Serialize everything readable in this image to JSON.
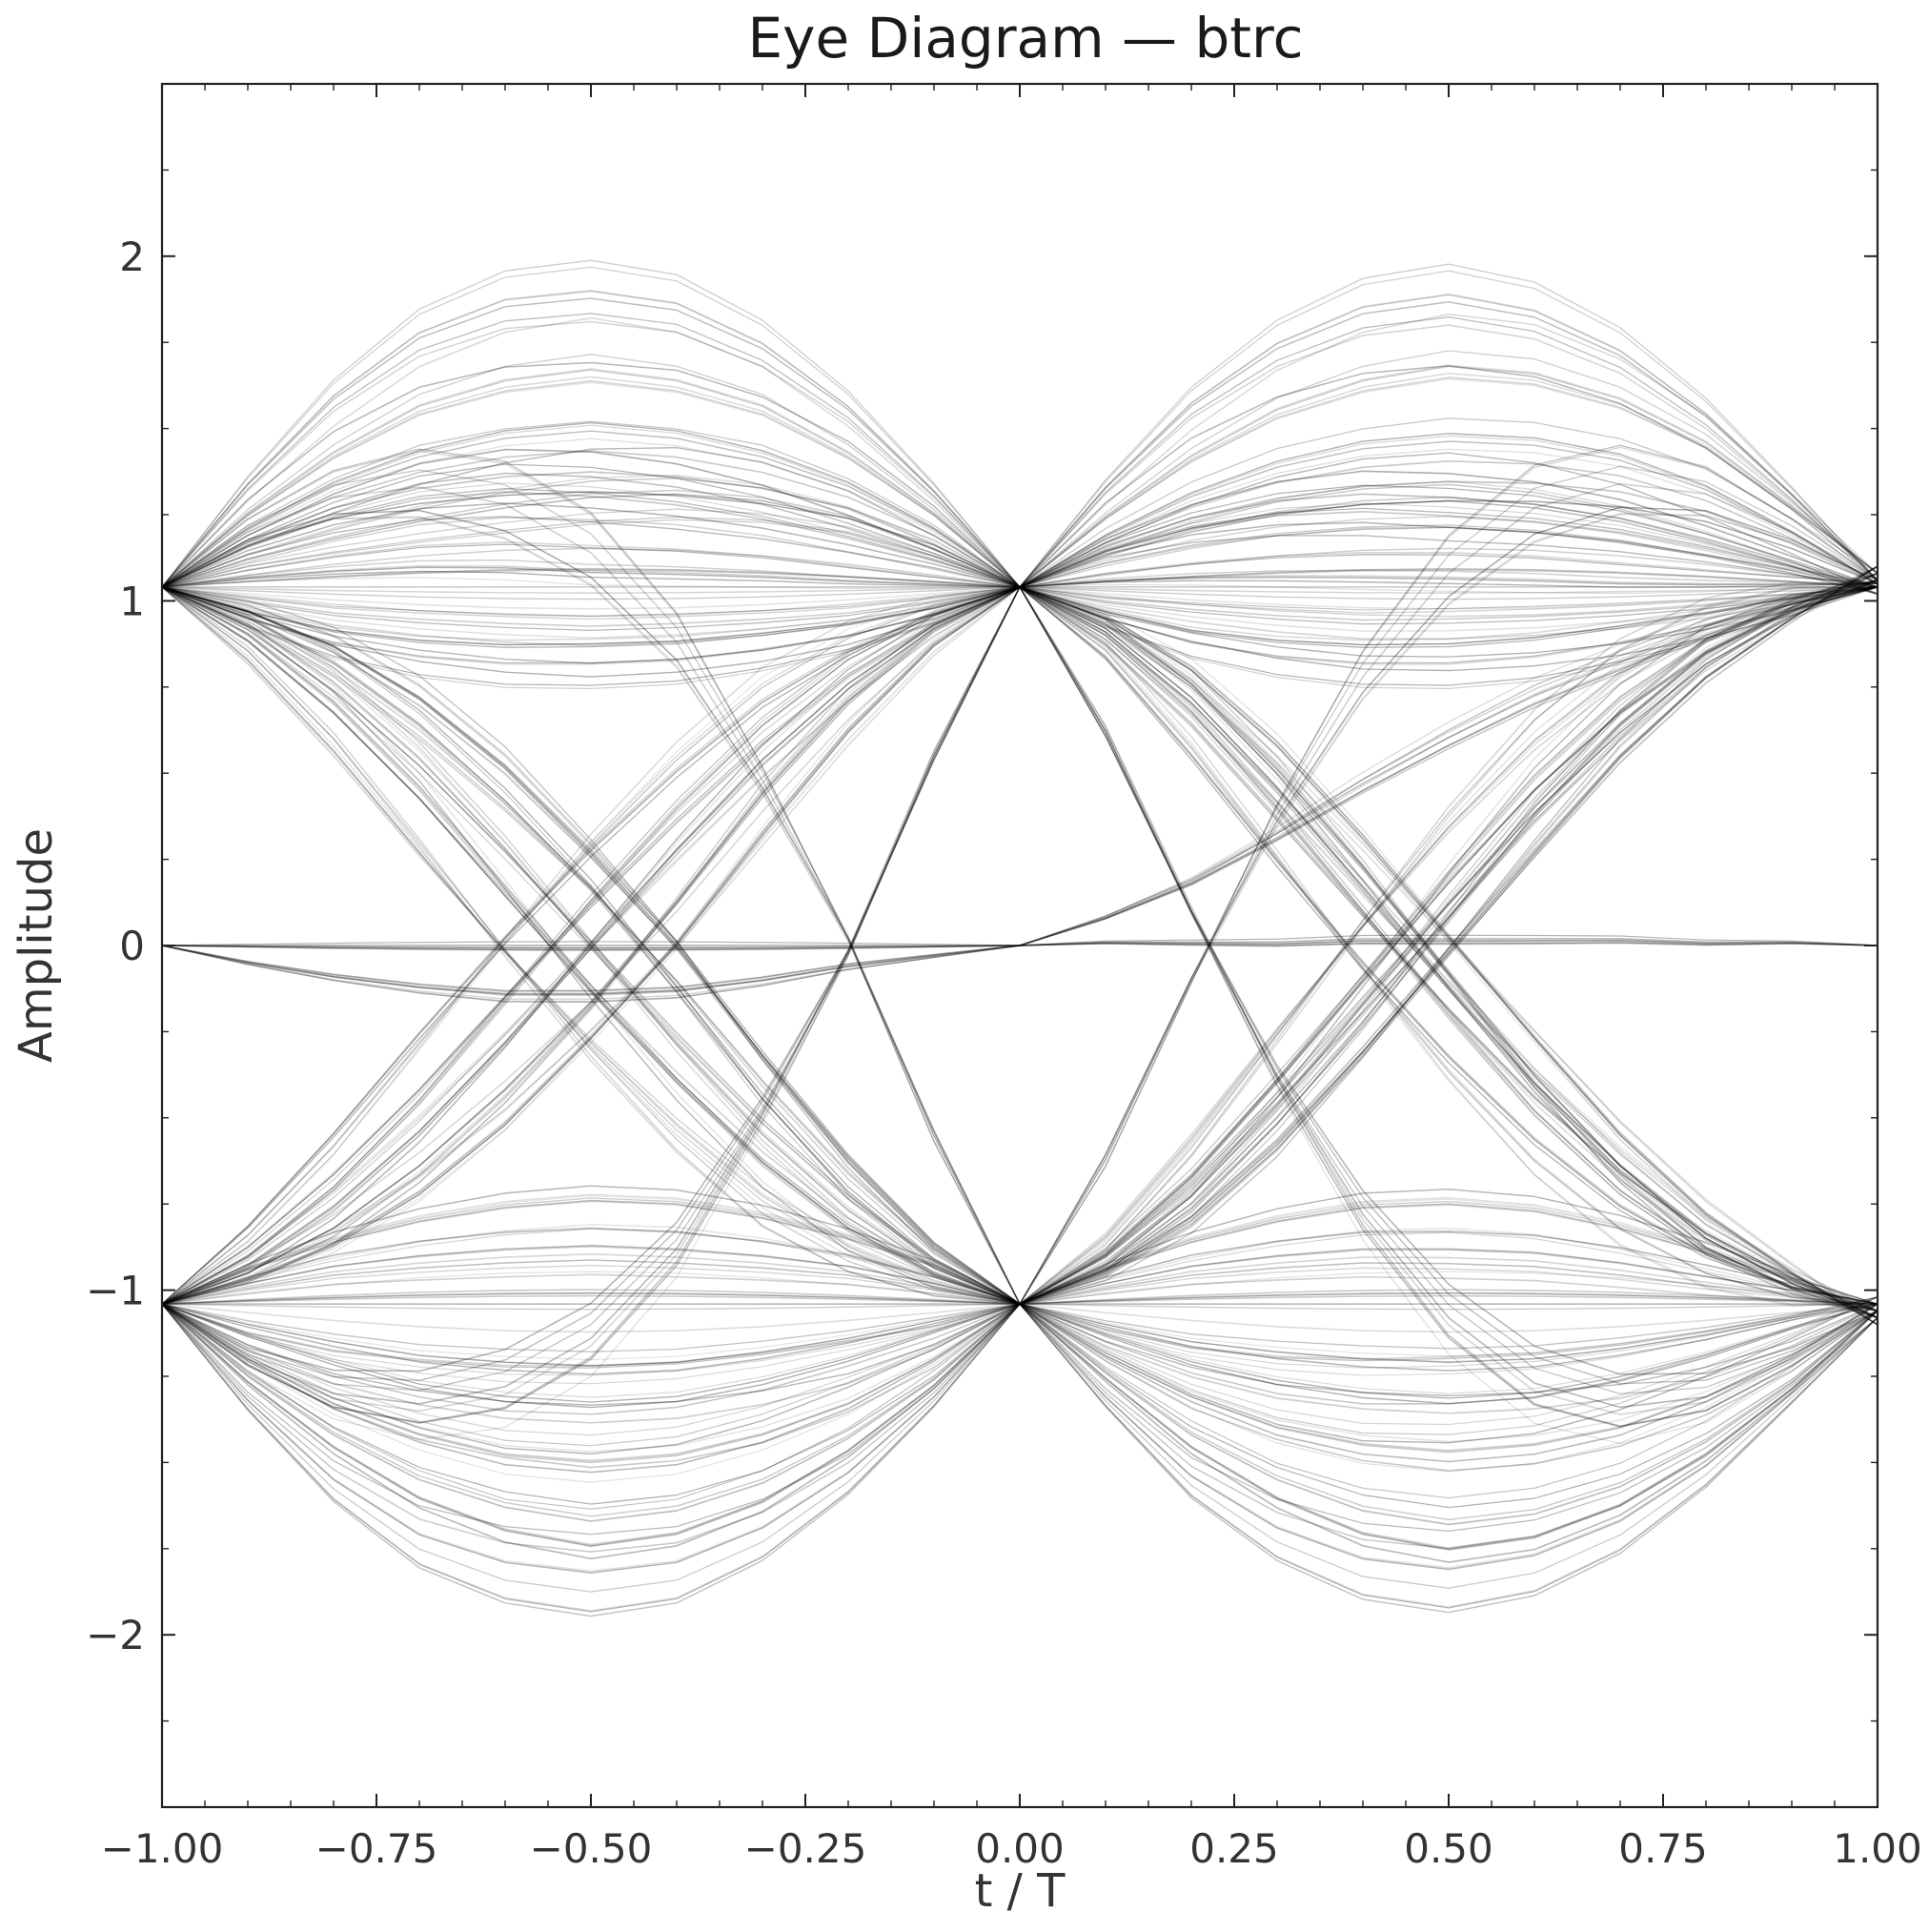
{
  "chart_data": {
    "type": "line",
    "title": "Eye Diagram — btrc",
    "xlabel": "t / T",
    "ylabel": "Amplitude",
    "xlim": [
      -1.0,
      1.0
    ],
    "ylim": [
      -2.5,
      2.5
    ],
    "grid": false,
    "legend": "none",
    "line_color": "#000000",
    "x_ticks": [
      -1.0,
      -0.75,
      -0.5,
      -0.25,
      0.0,
      0.25,
      0.5,
      0.75,
      1.0
    ],
    "x_tick_labels": [
      "−1.00",
      "−0.75",
      "−0.50",
      "−0.25",
      "0.00",
      "0.25",
      "0.50",
      "0.75",
      "1.00"
    ],
    "y_ticks": [
      -2,
      -1,
      0,
      1,
      2
    ],
    "y_tick_labels": [
      "−2",
      "−1",
      "0",
      "1",
      "2"
    ],
    "x_minor_ticks": [
      -0.95,
      -0.9,
      -0.85,
      -0.8,
      -0.7,
      -0.65,
      -0.6,
      -0.55,
      -0.45,
      -0.4,
      -0.35,
      -0.3,
      -0.2,
      -0.15,
      -0.1,
      -0.05,
      0.05,
      0.1,
      0.15,
      0.2,
      0.3,
      0.35,
      0.4,
      0.45,
      0.55,
      0.6,
      0.65,
      0.7,
      0.8,
      0.85,
      0.9,
      0.95
    ],
    "y_minor_ticks": [
      -2.25,
      -1.75,
      -1.5,
      -1.25,
      -0.75,
      -0.5,
      -0.25,
      0.25,
      0.5,
      0.75,
      1.25,
      1.5,
      1.75,
      2.25
    ],
    "sample_levels": [
      -1.04,
      1.04
    ],
    "x": [
      -1.0,
      -0.9,
      -0.8,
      -0.7,
      -0.6,
      -0.5,
      -0.4,
      -0.3,
      -0.2,
      -0.1,
      0.0,
      0.1,
      0.2,
      0.3,
      0.4,
      0.5,
      0.6,
      0.7,
      0.8,
      0.9,
      1.0
    ],
    "series": [
      {
        "values": [
          1.04,
          1.32,
          1.55,
          1.71,
          1.79,
          1.81,
          1.78,
          1.68,
          1.52,
          1.3,
          1.04,
          1.31,
          1.53,
          1.68,
          1.77,
          1.8,
          1.76,
          1.66,
          1.5,
          1.29,
          1.06
        ]
      },
      {
        "values": [
          1.04,
          1.25,
          1.42,
          1.55,
          1.62,
          1.65,
          1.62,
          1.55,
          1.42,
          1.25,
          1.04,
          1.24,
          1.41,
          1.54,
          1.62,
          1.66,
          1.64,
          1.57,
          1.45,
          1.27,
          1.08
        ]
      },
      {
        "values": [
          1.04,
          1.2,
          1.32,
          1.4,
          1.45,
          1.47,
          1.45,
          1.4,
          1.32,
          1.2,
          1.04,
          1.18,
          1.29,
          1.37,
          1.42,
          1.44,
          1.43,
          1.39,
          1.31,
          1.19,
          1.05
        ]
      },
      {
        "values": [
          1.04,
          1.17,
          1.27,
          1.34,
          1.37,
          1.36,
          1.33,
          1.28,
          1.21,
          1.13,
          1.04,
          1.16,
          1.24,
          1.29,
          1.31,
          1.3,
          1.28,
          1.24,
          1.18,
          1.11,
          1.04
        ]
      },
      {
        "values": [
          1.04,
          1.12,
          1.18,
          1.23,
          1.27,
          1.3,
          1.31,
          1.29,
          1.24,
          1.15,
          1.04,
          1.13,
          1.2,
          1.25,
          1.28,
          1.29,
          1.27,
          1.23,
          1.17,
          1.1,
          1.02
        ]
      },
      {
        "values": [
          1.04,
          1.09,
          1.13,
          1.16,
          1.17,
          1.16,
          1.15,
          1.13,
          1.1,
          1.07,
          1.04,
          1.08,
          1.11,
          1.13,
          1.14,
          1.14,
          1.13,
          1.11,
          1.09,
          1.07,
          1.05
        ]
      },
      {
        "values": [
          1.04,
          1.04,
          1.04,
          1.04,
          1.04,
          1.04,
          1.04,
          1.04,
          1.04,
          1.04,
          1.04,
          1.04,
          1.04,
          1.04,
          1.04,
          1.04,
          1.04,
          1.04,
          1.04,
          1.04,
          1.04
        ]
      },
      {
        "values": [
          1.04,
          0.98,
          0.93,
          0.9,
          0.88,
          0.87,
          0.88,
          0.9,
          0.93,
          0.98,
          1.04,
          0.98,
          0.94,
          0.91,
          0.89,
          0.89,
          0.9,
          0.92,
          0.95,
          0.99,
          1.04
        ]
      },
      {
        "values": [
          1.04,
          0.95,
          0.88,
          0.84,
          0.82,
          0.82,
          0.83,
          0.86,
          0.9,
          0.96,
          1.04,
          0.95,
          0.88,
          0.84,
          0.82,
          0.82,
          0.84,
          0.88,
          0.93,
          0.99,
          1.06
        ]
      },
      {
        "values": [
          -1.04,
          -1.32,
          -1.55,
          -1.71,
          -1.79,
          -1.82,
          -1.79,
          -1.69,
          -1.53,
          -1.31,
          -1.04,
          -1.31,
          -1.54,
          -1.69,
          -1.78,
          -1.81,
          -1.77,
          -1.67,
          -1.51,
          -1.3,
          -1.08
        ]
      },
      {
        "values": [
          -1.04,
          -1.25,
          -1.42,
          -1.55,
          -1.63,
          -1.67,
          -1.64,
          -1.56,
          -1.43,
          -1.26,
          -1.04,
          -1.24,
          -1.42,
          -1.55,
          -1.64,
          -1.68,
          -1.65,
          -1.57,
          -1.44,
          -1.27,
          -1.06
        ]
      },
      {
        "values": [
          -1.04,
          -1.2,
          -1.33,
          -1.42,
          -1.48,
          -1.5,
          -1.48,
          -1.42,
          -1.33,
          -1.2,
          -1.04,
          -1.19,
          -1.31,
          -1.4,
          -1.45,
          -1.47,
          -1.45,
          -1.4,
          -1.31,
          -1.19,
          -1.04
        ]
      },
      {
        "values": [
          -1.04,
          -1.16,
          -1.25,
          -1.31,
          -1.35,
          -1.36,
          -1.34,
          -1.29,
          -1.22,
          -1.14,
          -1.04,
          -1.15,
          -1.24,
          -1.3,
          -1.33,
          -1.33,
          -1.31,
          -1.26,
          -1.19,
          -1.11,
          -1.02
        ]
      },
      {
        "values": [
          -1.04,
          -1.1,
          -1.15,
          -1.19,
          -1.21,
          -1.22,
          -1.21,
          -1.18,
          -1.14,
          -1.09,
          -1.04,
          -1.1,
          -1.15,
          -1.18,
          -1.2,
          -1.21,
          -1.2,
          -1.17,
          -1.13,
          -1.08,
          -1.04
        ]
      },
      {
        "values": [
          -1.04,
          -1.04,
          -1.04,
          -1.04,
          -1.04,
          -1.04,
          -1.04,
          -1.04,
          -1.04,
          -1.04,
          -1.04,
          -1.04,
          -1.04,
          -1.04,
          -1.04,
          -1.04,
          -1.04,
          -1.04,
          -1.04,
          -1.04,
          -1.04
        ]
      },
      {
        "values": [
          -1.04,
          -0.98,
          -0.93,
          -0.9,
          -0.88,
          -0.87,
          -0.88,
          -0.9,
          -0.93,
          -0.98,
          -1.04,
          -0.98,
          -0.93,
          -0.9,
          -0.88,
          -0.88,
          -0.89,
          -0.92,
          -0.96,
          -1.0,
          -1.06
        ]
      },
      {
        "values": [
          -1.04,
          -0.94,
          -0.86,
          -0.8,
          -0.76,
          -0.74,
          -0.75,
          -0.79,
          -0.85,
          -0.93,
          -1.04,
          -0.94,
          -0.86,
          -0.8,
          -0.76,
          -0.75,
          -0.77,
          -0.82,
          -0.89,
          -0.97,
          -1.08
        ]
      },
      {
        "values": [
          1.04,
          0.95,
          0.82,
          0.64,
          0.42,
          0.17,
          -0.12,
          -0.43,
          -0.7,
          -0.91,
          -1.04,
          -0.93,
          -0.75,
          -0.5,
          -0.22,
          0.08,
          0.38,
          0.64,
          0.85,
          0.98,
          1.08
        ]
      },
      {
        "values": [
          1.04,
          0.93,
          0.76,
          0.54,
          0.28,
          0.0,
          -0.28,
          -0.54,
          -0.76,
          -0.93,
          -1.04,
          -0.92,
          -0.72,
          -0.46,
          -0.17,
          0.12,
          0.4,
          0.64,
          0.84,
          0.97,
          1.06
        ]
      },
      {
        "values": [
          1.04,
          0.9,
          0.7,
          0.45,
          0.16,
          -0.13,
          -0.4,
          -0.64,
          -0.83,
          -0.96,
          -1.04,
          -0.9,
          -0.68,
          -0.4,
          -0.1,
          0.2,
          0.48,
          0.71,
          0.88,
          0.99,
          1.04
        ]
      },
      {
        "values": [
          1.04,
          0.97,
          0.87,
          0.72,
          0.52,
          0.27,
          0.0,
          -0.32,
          -0.62,
          -0.87,
          -1.04,
          -0.95,
          -0.8,
          -0.58,
          -0.31,
          -0.02,
          0.27,
          0.55,
          0.78,
          0.95,
          1.1
        ]
      },
      {
        "values": [
          1.04,
          0.84,
          0.58,
          0.28,
          -0.02,
          -0.3,
          -0.55,
          -0.76,
          -0.9,
          -0.99,
          -1.04,
          -0.86,
          -0.58,
          -0.26,
          0.06,
          0.36,
          0.62,
          0.82,
          0.95,
          1.02,
          1.04
        ]
      },
      {
        "values": [
          -1.04,
          -0.95,
          -0.82,
          -0.64,
          -0.42,
          -0.17,
          0.12,
          0.43,
          0.7,
          0.91,
          1.04,
          0.93,
          0.75,
          0.5,
          0.22,
          -0.08,
          -0.38,
          -0.64,
          -0.85,
          -0.98,
          -1.08
        ]
      },
      {
        "values": [
          -1.04,
          -0.93,
          -0.76,
          -0.54,
          -0.28,
          0.0,
          0.28,
          0.54,
          0.76,
          0.93,
          1.04,
          0.92,
          0.72,
          0.46,
          0.17,
          -0.12,
          -0.4,
          -0.64,
          -0.84,
          -0.97,
          -1.06
        ]
      },
      {
        "values": [
          -1.04,
          -0.9,
          -0.7,
          -0.45,
          -0.16,
          0.13,
          0.4,
          0.64,
          0.83,
          0.96,
          1.04,
          0.9,
          0.68,
          0.4,
          0.1,
          -0.2,
          -0.48,
          -0.71,
          -0.88,
          -0.99,
          -1.04
        ]
      },
      {
        "values": [
          -1.04,
          -0.97,
          -0.87,
          -0.72,
          -0.52,
          -0.27,
          0.0,
          0.32,
          0.62,
          0.87,
          1.04,
          0.95,
          0.8,
          0.58,
          0.31,
          0.02,
          -0.27,
          -0.55,
          -0.78,
          -0.95,
          -1.1
        ]
      },
      {
        "values": [
          -1.04,
          -0.84,
          -0.58,
          -0.28,
          0.02,
          0.3,
          0.55,
          0.76,
          0.9,
          0.99,
          1.04,
          0.86,
          0.58,
          0.26,
          -0.06,
          -0.36,
          -0.62,
          -0.82,
          -0.95,
          -1.02,
          -1.04
        ]
      },
      {
        "values": [
          1.04,
          1.2,
          1.3,
          1.33,
          1.28,
          1.14,
          0.88,
          0.48,
          0.02,
          -0.55,
          -1.04,
          -0.62,
          -0.1,
          0.38,
          0.78,
          1.08,
          1.27,
          1.34,
          1.31,
          1.2,
          1.06
        ]
      },
      {
        "values": [
          -1.04,
          -1.2,
          -1.3,
          -1.33,
          -1.28,
          -1.14,
          -0.88,
          -0.48,
          -0.02,
          0.55,
          1.04,
          0.62,
          0.1,
          -0.38,
          -0.78,
          -1.08,
          -1.27,
          -1.34,
          -1.31,
          -1.2,
          -1.06
        ]
      },
      {
        "values": [
          0.0,
          0.0,
          0.0,
          0.0,
          0.0,
          0.0,
          0.0,
          0.0,
          0.0,
          0.0,
          0.0,
          0.01,
          0.01,
          0.01,
          0.02,
          0.02,
          0.02,
          0.02,
          0.01,
          0.01,
          0.0
        ]
      },
      {
        "values": [
          0.0,
          -0.05,
          -0.09,
          -0.12,
          -0.14,
          -0.14,
          -0.13,
          -0.1,
          -0.06,
          -0.03,
          0.0,
          0.08,
          0.18,
          0.31,
          0.45,
          0.58,
          0.7,
          0.8,
          0.9,
          0.98,
          1.04
        ]
      }
    ]
  }
}
